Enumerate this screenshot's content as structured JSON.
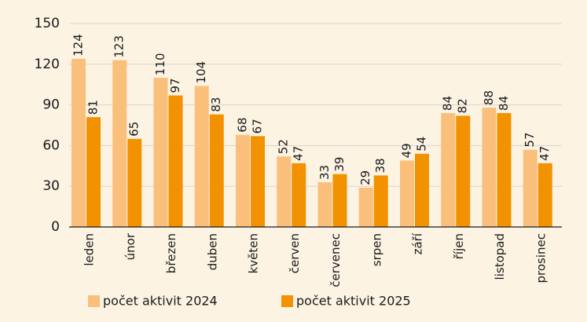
{
  "chart_data": {
    "type": "bar",
    "categories": [
      "leden",
      "únor",
      "březen",
      "duben",
      "květen",
      "červen",
      "červenec",
      "srpen",
      "září",
      "říjen",
      "listopad",
      "prosinec"
    ],
    "series": [
      {
        "name": "počet aktivit 2024",
        "color": "#fbbf7c",
        "values": [
          124,
          123,
          110,
          104,
          68,
          52,
          33,
          29,
          49,
          84,
          88,
          57
        ]
      },
      {
        "name": "počet aktivit 2025",
        "color": "#f39200",
        "values": [
          81,
          65,
          97,
          83,
          67,
          47,
          39,
          38,
          54,
          82,
          84,
          47
        ]
      }
    ],
    "ylim": [
      0,
      150
    ],
    "yticks": [
      0,
      30,
      60,
      90,
      120,
      150
    ],
    "grid": true
  }
}
